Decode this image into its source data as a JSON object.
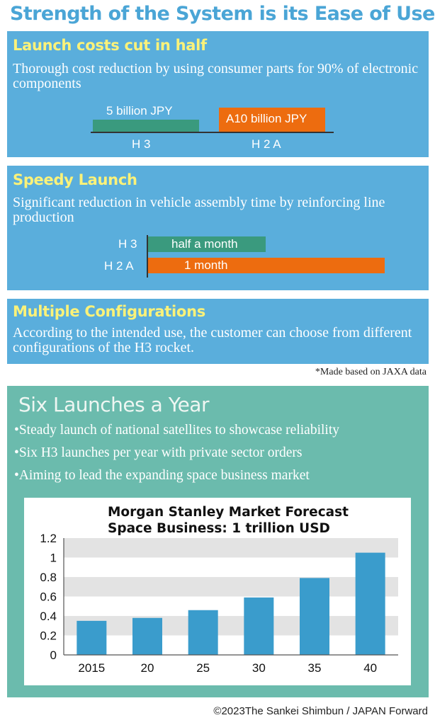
{
  "header": {
    "title": "Strength of the System is its Ease of Use"
  },
  "launch_costs": {
    "heading": "Launch costs cut in half",
    "text": "Thorough cost reduction by using consumer parts for 90% of electronic components",
    "bars": [
      {
        "name": "H 3",
        "label": "5 billion JPY",
        "value": 5,
        "color": "#3a9a7e"
      },
      {
        "name": "H 2 A",
        "label": "A10 billion JPY",
        "value": 10,
        "color": "#ed6c0f"
      }
    ]
  },
  "speedy": {
    "heading": "Speedy Launch",
    "text": "Significant reduction in vehicle assembly time by reinforcing line production",
    "bars": [
      {
        "name": "H 3",
        "label": "half a month",
        "value": 0.5,
        "color": "#3a9a7e"
      },
      {
        "name": "H 2 A",
        "label": "1 month",
        "value": 1,
        "color": "#ed6c0f"
      }
    ]
  },
  "configurations": {
    "heading": "Multiple Configurations",
    "text": "According to the intended use, the customer can choose from different configurations of the H3 rocket."
  },
  "note": "*Made based on JAXA data",
  "six_launches": {
    "title": "Six Launches a Year",
    "bullets": [
      "•Steady launch of national satellites to showcase reliability",
      "•Six H3 launches per year with private sector orders",
      "•Aiming to lead the expanding space business market"
    ]
  },
  "chart_data": {
    "type": "bar",
    "title": "Morgan Stanley Market Forecast\nSpace Business: 1 trillion USD",
    "title_lines": [
      "Morgan Stanley Market Forecast",
      "Space Business: 1 trillion USD"
    ],
    "categories": [
      "2015",
      "20",
      "25",
      "30",
      "35",
      "40"
    ],
    "values": [
      0.35,
      0.38,
      0.46,
      0.59,
      0.79,
      1.05
    ],
    "ylim": [
      0,
      1.2
    ],
    "yticks": [
      "0",
      "0.2",
      "0.4",
      "0.6",
      "0.8",
      "1",
      "1.2"
    ],
    "xlabel": "",
    "ylabel": "",
    "grid": "alternating bands",
    "bar_color": "#3a9ccc",
    "band_color": "#e3e3e3"
  },
  "footer": {
    "copyright": "©2023The Sankei Shimbun / JAPAN Forward"
  }
}
